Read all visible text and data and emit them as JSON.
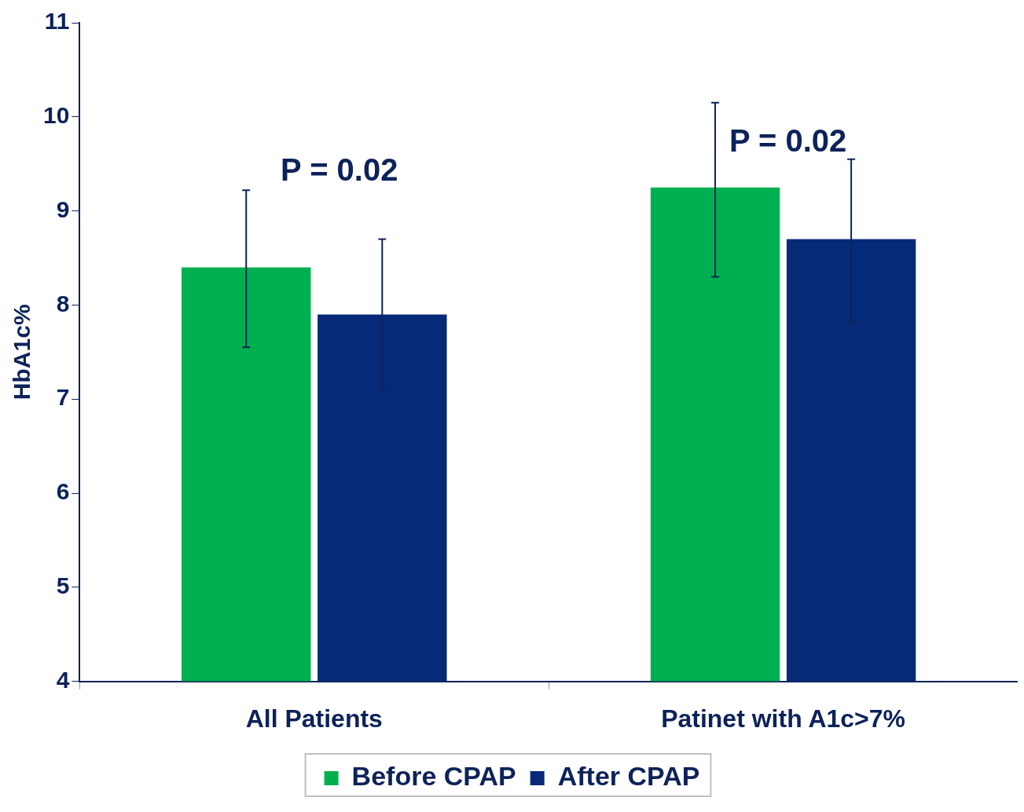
{
  "chart_data": {
    "type": "bar",
    "ylabel": "HbA1c%",
    "categories": [
      "All Patients",
      "Patinet with A1c>7%"
    ],
    "series": [
      {
        "name": "Before CPAP",
        "color": "#00b050",
        "values": [
          8.4,
          9.25
        ],
        "errors": [
          [
            7.55,
            9.22
          ],
          [
            8.3,
            10.15
          ]
        ]
      },
      {
        "name": "After CPAP",
        "color": "#062a78",
        "values": [
          7.9,
          8.7
        ],
        "errors": [
          [
            7.1,
            8.7
          ],
          [
            7.82,
            9.55
          ]
        ]
      }
    ],
    "ylim": [
      4,
      11
    ],
    "yticks": [
      4,
      5,
      6,
      7,
      8,
      9,
      10,
      11
    ],
    "grid": false,
    "legend": "bottom",
    "annotations": [
      "P = 0.02",
      "P = 0.02"
    ]
  }
}
